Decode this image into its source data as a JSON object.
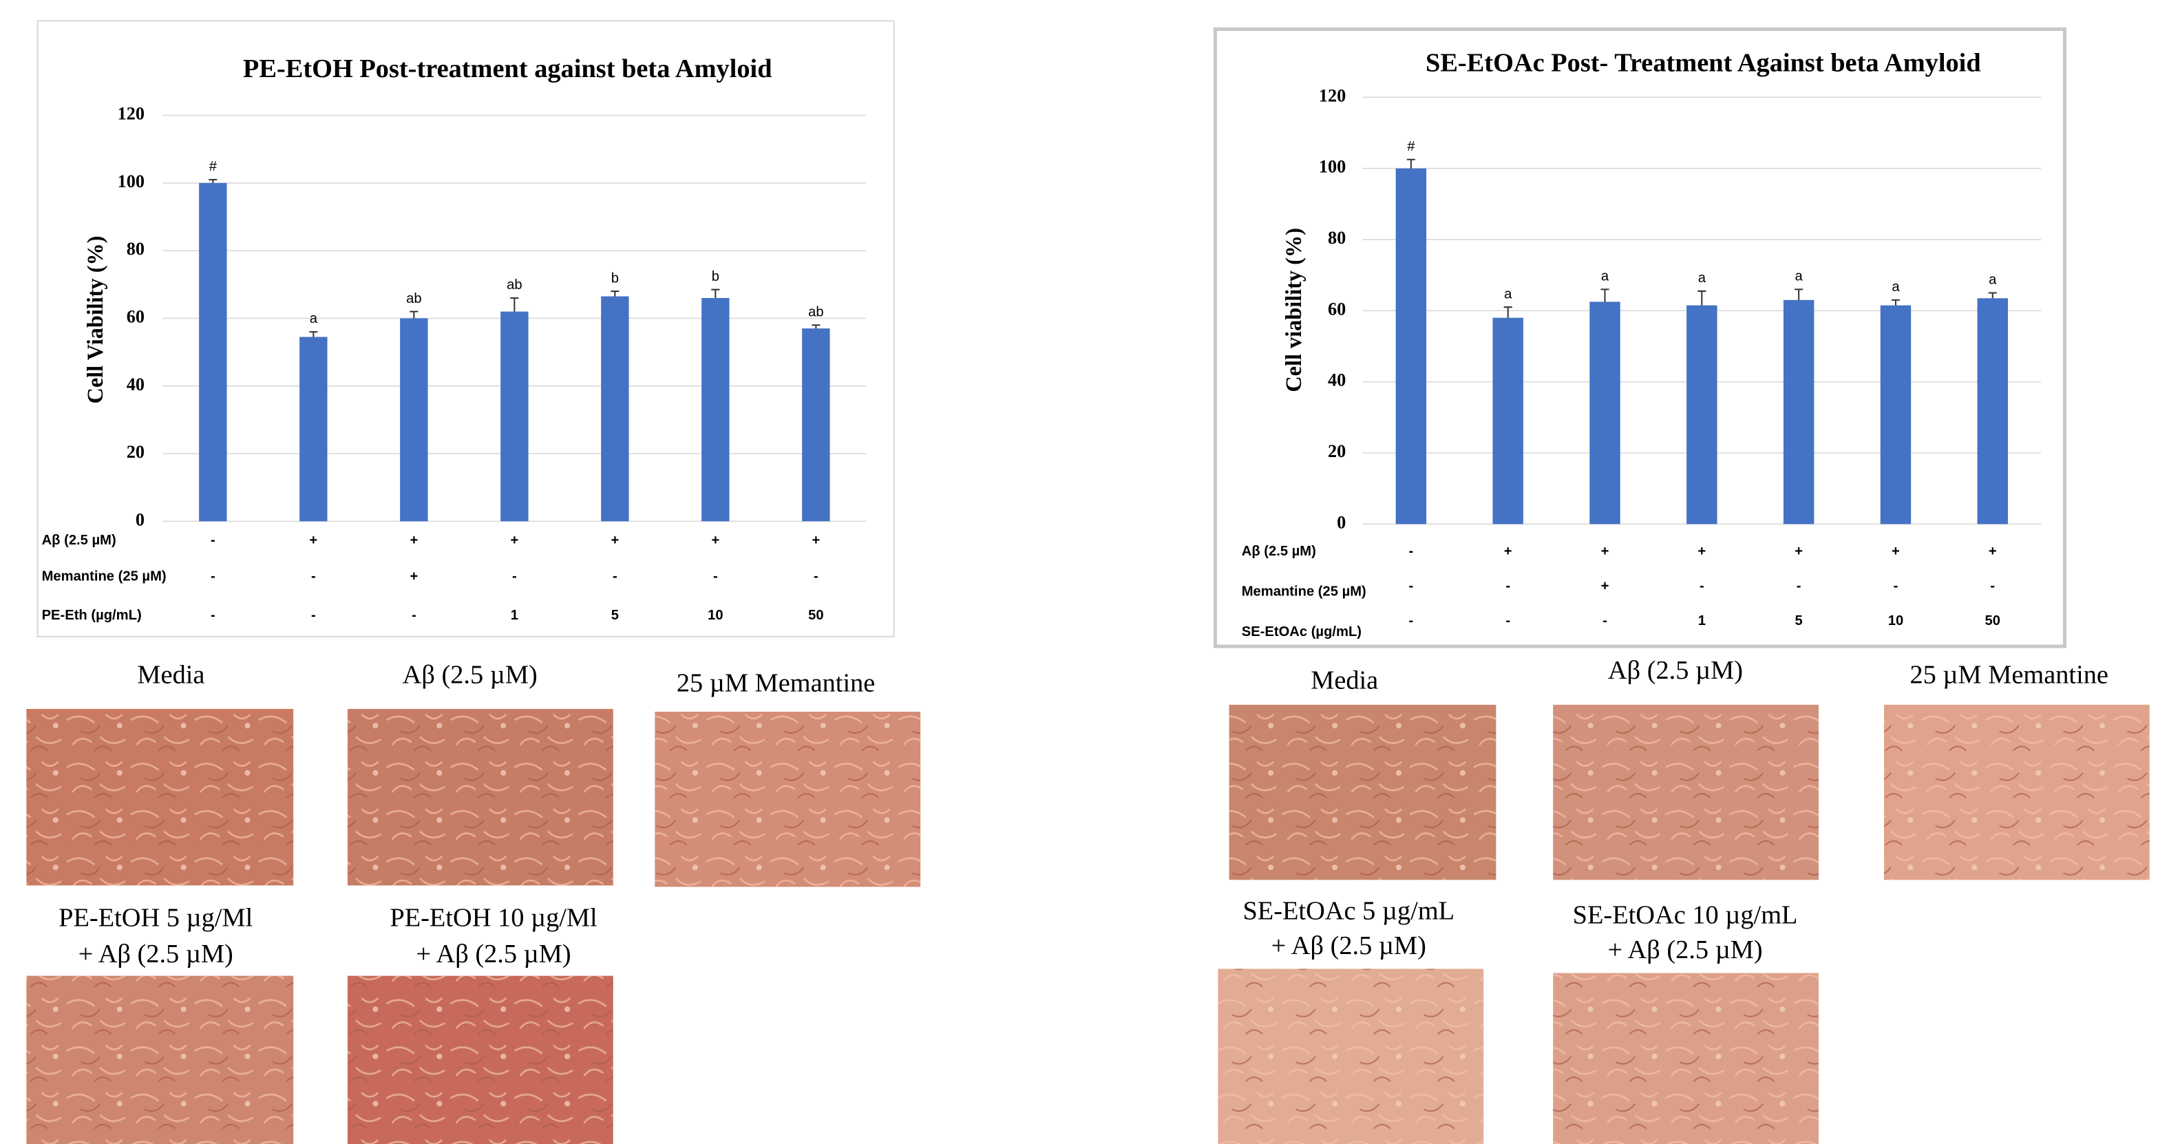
{
  "chart_data": [
    {
      "type": "bar",
      "title": "PE-EtOH Post-treatment  against beta Amyloid",
      "y_label": "Cell Viability (%)",
      "values": [
        100,
        54.5,
        60,
        62,
        66.5,
        66,
        57
      ],
      "errors": [
        1,
        1.5,
        2,
        4,
        1.5,
        2.5,
        1
      ],
      "annotations": [
        "#",
        "a",
        "ab",
        "ab",
        "b",
        "b",
        "ab"
      ],
      "color": "#4472c4",
      "ylim": [
        0,
        120
      ],
      "yticks": [
        0,
        20,
        40,
        60,
        80,
        100,
        120
      ],
      "grid": true,
      "treatment_rows": [
        {
          "label": "Aβ (2.5 µM)",
          "values": [
            "-",
            "+",
            "+",
            "+",
            "+",
            "+",
            "+"
          ]
        },
        {
          "label": "Memantine (25 µM)",
          "values": [
            "-",
            "-",
            "+",
            "-",
            "-",
            "-",
            "-"
          ]
        },
        {
          "label": "PE-Eth (µg/mL)",
          "values": [
            "-",
            "-",
            "-",
            "1",
            "5",
            "10",
            "50"
          ]
        }
      ]
    },
    {
      "type": "bar",
      "title": "SE-EtOAc Post- Treatment  Against beta Amyloid",
      "y_label": "Cell viability (%)",
      "values": [
        100,
        58,
        62.5,
        61.5,
        63,
        61.5,
        63.5
      ],
      "errors": [
        2.5,
        3,
        3.5,
        4,
        3,
        1.5,
        1.5
      ],
      "annotations": [
        "#",
        "a",
        "a",
        "a",
        "a",
        "a",
        "a"
      ],
      "color": "#4472c4",
      "ylim": [
        0,
        120
      ],
      "yticks": [
        0,
        20,
        40,
        60,
        80,
        100,
        120
      ],
      "grid": true,
      "treatment_rows": [
        {
          "label": "Aβ (2.5 µM)",
          "values": [
            "-",
            "+",
            "+",
            "+",
            "+",
            "+",
            "+"
          ]
        },
        {
          "label": "Memantine (25 µM)",
          "values": [
            "-",
            "-",
            "+",
            "-",
            "-",
            "-",
            "-"
          ]
        },
        {
          "label": "SE-EtOAc (µg/mL)",
          "values": [
            "-",
            "-",
            "-",
            "1",
            "5",
            "10",
            "50"
          ]
        }
      ]
    }
  ],
  "panels": [
    {
      "images": [
        {
          "caption": [
            "Media"
          ]
        },
        {
          "caption": [
            "Aβ (2.5 µM)"
          ]
        },
        {
          "caption": [
            "25 µM Memantine"
          ]
        },
        {
          "caption": [
            "PE-EtOH 5 µg/Ml",
            "+ Aβ (2.5 µM)"
          ]
        },
        {
          "caption": [
            "PE-EtOH 10 µg/Ml",
            "+ Aβ (2.5 µM)"
          ]
        }
      ]
    },
    {
      "images": [
        {
          "caption": [
            "Media"
          ]
        },
        {
          "caption": [
            "Aβ (2.5 µM)"
          ]
        },
        {
          "caption": [
            "25 µM Memantine"
          ]
        },
        {
          "caption": [
            "SE-EtOAc 5 µg/mL",
            "+ Aβ (2.5 µM)"
          ]
        },
        {
          "caption": [
            "SE-EtOAc 10 µg/mL",
            "+ Aβ (2.5 µM)"
          ]
        }
      ]
    }
  ]
}
